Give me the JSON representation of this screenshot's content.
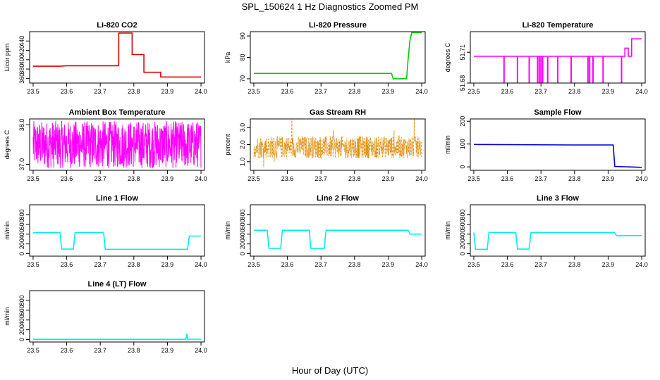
{
  "figure": {
    "title": "SPL_150624  1 Hz Diagnostics Zoomed PM",
    "xlabel": "Hour of Day (UTC)"
  },
  "chart_data": [
    {
      "type": "line",
      "title": "Li-820 CO2",
      "ylabel": "Licor ppm",
      "color": "#dd0000",
      "xlim": [
        23.5,
        24.0
      ],
      "ylim": [
        350,
        460
      ],
      "xticks": [
        "23.5",
        "23.6",
        "23.7",
        "23.8",
        "23.9",
        "24.0"
      ],
      "yticks": [
        360,
        380,
        400,
        420,
        440
      ],
      "x": [
        23.5,
        23.58,
        23.6,
        23.69,
        23.755,
        23.755,
        23.795,
        23.795,
        23.83,
        23.83,
        23.865,
        23.865,
        23.88,
        23.88,
        24.0
      ],
      "y": [
        386,
        386,
        387,
        387,
        387,
        457,
        457,
        411,
        411,
        373,
        373,
        373,
        373,
        363,
        363
      ]
    },
    {
      "type": "line",
      "title": "Li-820 Pressure",
      "ylabel": "kPa",
      "color": "#00cc00",
      "xlim": [
        23.5,
        24.0
      ],
      "ylim": [
        68,
        92
      ],
      "xticks": [
        "23.5",
        "23.6",
        "23.7",
        "23.8",
        "23.9",
        "24.0"
      ],
      "yticks": [
        70,
        80,
        90
      ],
      "x": [
        23.5,
        23.91,
        23.915,
        23.955,
        23.96,
        23.965,
        23.97,
        24.0
      ],
      "y": [
        72.5,
        72.5,
        70,
        70,
        80,
        88,
        91.5,
        91.5
      ]
    },
    {
      "type": "line",
      "title": "Li-820 Temperature",
      "ylabel": "degrees C",
      "color": "#ff00ff",
      "xlim": [
        23.5,
        24.0
      ],
      "ylim": [
        51.68,
        51.73
      ],
      "xticks": [
        "23.5",
        "23.6",
        "23.7",
        "23.8",
        "23.9",
        "24.0"
      ],
      "yticks": [
        51.68,
        51.71
      ],
      "x": [
        23.5,
        23.95,
        23.95,
        23.96,
        23.96,
        23.97,
        23.97,
        24.0
      ],
      "y": [
        51.706,
        51.706,
        51.714,
        51.714,
        51.706,
        51.706,
        51.723,
        51.723
      ],
      "dropouts_x": [
        23.59,
        23.63,
        23.665,
        23.69,
        23.695,
        23.7,
        23.705,
        23.72,
        23.75,
        23.79,
        23.84,
        23.845,
        23.855,
        23.885,
        23.94
      ],
      "dropout_y": 51.68
    },
    {
      "type": "line",
      "title": "Ambient Box Temperature",
      "ylabel": "degrees C",
      "color": "#ff00ff",
      "xlim": [
        23.5,
        24.0
      ],
      "ylim": [
        36.85,
        38.15
      ],
      "xticks": [
        "23.5",
        "23.6",
        "23.7",
        "23.8",
        "23.9",
        "24.0"
      ],
      "yticks": [
        "37.0",
        "38.0"
      ],
      "noise_mean": 37.5,
      "noise_range": [
        36.9,
        38.1
      ]
    },
    {
      "type": "scatter",
      "title": "Gas Stream RH",
      "ylabel": "percent",
      "color": "#dd8800",
      "xlim": [
        23.5,
        24.0
      ],
      "ylim": [
        0.5,
        3.5
      ],
      "xticks": [
        "23.5",
        "23.6",
        "23.7",
        "23.8",
        "23.9",
        "24.0"
      ],
      "yticks": [
        "1.0",
        "2.0",
        "3.0"
      ],
      "noise_mean": 1.85,
      "noise_range": [
        1.2,
        2.5
      ]
    },
    {
      "type": "line",
      "title": "Sample Flow",
      "ylabel": "ml/min",
      "color": "#0000dd",
      "xlim": [
        23.5,
        24.0
      ],
      "ylim": [
        -15,
        210
      ],
      "xticks": [
        "23.5",
        "23.6",
        "23.7",
        "23.8",
        "23.9",
        "24.0"
      ],
      "yticks": [
        0,
        100,
        200
      ],
      "x": [
        23.5,
        23.8,
        23.915,
        23.92,
        24.0
      ],
      "y": [
        98,
        96,
        96,
        2,
        -2
      ]
    },
    {
      "type": "line",
      "title": "Line 1 Flow",
      "ylabel": "ml/min",
      "color": "#00eeee",
      "xlim": [
        23.5,
        24.0
      ],
      "ylim": [
        -50,
        1000
      ],
      "xticks": [
        "23.5",
        "23.6",
        "23.7",
        "23.8",
        "23.9",
        "24.0"
      ],
      "yticks": [
        0,
        200,
        400,
        600,
        800
      ],
      "x": [
        23.5,
        23.58,
        23.585,
        23.62,
        23.625,
        23.71,
        23.715,
        23.96,
        23.965,
        24.0
      ],
      "y": [
        430,
        430,
        95,
        95,
        430,
        430,
        90,
        90,
        360,
        360
      ]
    },
    {
      "type": "line",
      "title": "Line 2 Flow",
      "ylabel": "ml/min",
      "color": "#00eeee",
      "xlim": [
        23.5,
        24.0
      ],
      "ylim": [
        -50,
        1000
      ],
      "xticks": [
        "23.5",
        "23.6",
        "23.7",
        "23.8",
        "23.9",
        "24.0"
      ],
      "yticks": [
        0,
        200,
        400,
        600,
        800
      ],
      "x": [
        23.5,
        23.54,
        23.545,
        23.58,
        23.585,
        23.665,
        23.67,
        23.71,
        23.715,
        23.96,
        23.965,
        24.0
      ],
      "y": [
        480,
        480,
        110,
        110,
        480,
        480,
        110,
        110,
        480,
        480,
        400,
        400
      ]
    },
    {
      "type": "line",
      "title": "Line 3 Flow",
      "ylabel": "ml/min",
      "color": "#00eeee",
      "xlim": [
        23.5,
        24.0
      ],
      "ylim": [
        -50,
        1000
      ],
      "xticks": [
        "23.5",
        "23.6",
        "23.7",
        "23.8",
        "23.9",
        "24.0"
      ],
      "yticks": [
        0,
        200,
        400,
        600,
        800
      ],
      "x": [
        23.5,
        23.505,
        23.54,
        23.545,
        23.625,
        23.63,
        23.665,
        23.67,
        23.92,
        23.925,
        24.0
      ],
      "y": [
        430,
        90,
        90,
        430,
        430,
        95,
        95,
        430,
        430,
        370,
        370
      ]
    },
    {
      "type": "line",
      "title": "Line 4 (LT) Flow",
      "ylabel": "ml/min",
      "color": "#00eeee",
      "xlim": [
        23.5,
        24.0
      ],
      "ylim": [
        -50,
        1000
      ],
      "xticks": [
        "23.5",
        "23.6",
        "23.7",
        "23.8",
        "23.9",
        "24.0"
      ],
      "yticks": [
        0,
        200,
        400,
        600,
        800
      ],
      "x": [
        23.5,
        23.955,
        23.958,
        23.96,
        24.0
      ],
      "y": [
        5,
        5,
        120,
        8,
        8
      ]
    }
  ]
}
